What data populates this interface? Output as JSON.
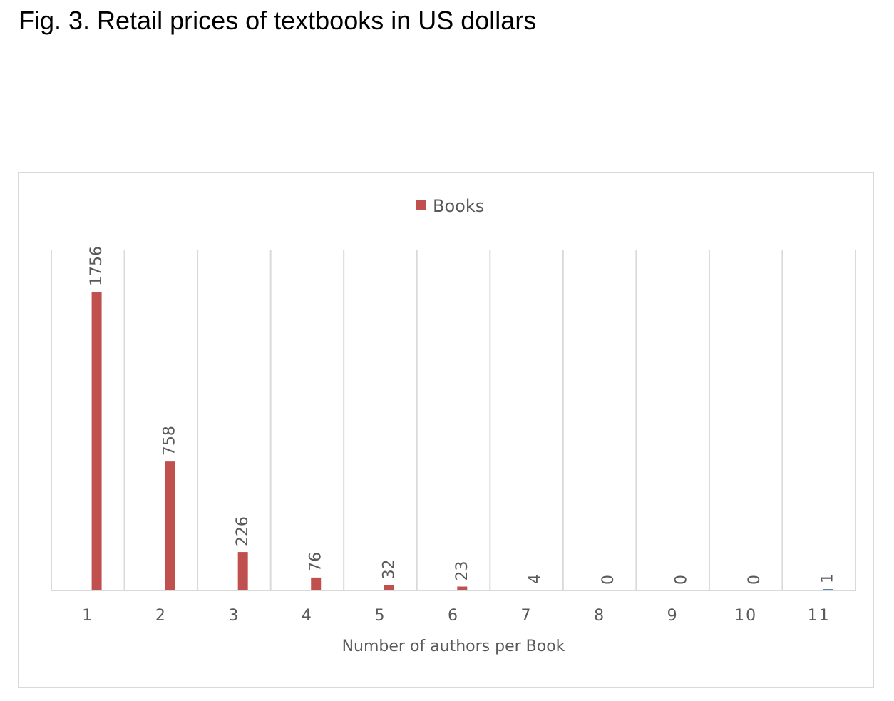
{
  "document": {
    "title": "Fig. 3. Retail prices of textbooks in US dollars"
  },
  "chart_data": {
    "type": "bar",
    "categories": [
      "1",
      "2",
      "3",
      "4",
      "5",
      "6",
      "7",
      "8",
      "9",
      "10",
      "11"
    ],
    "series": [
      {
        "name": "Books",
        "values": [
          1756,
          758,
          226,
          76,
          32,
          23,
          4,
          0,
          0,
          0,
          1
        ],
        "color": "#c0504d"
      }
    ],
    "last_bar_color": "#4f81bd",
    "xlabel": "Number of authors per Book",
    "ylabel": "",
    "ylim": [
      0,
      1756
    ],
    "grid": "vertical",
    "legend_position": "top-center",
    "data_labels": true
  }
}
